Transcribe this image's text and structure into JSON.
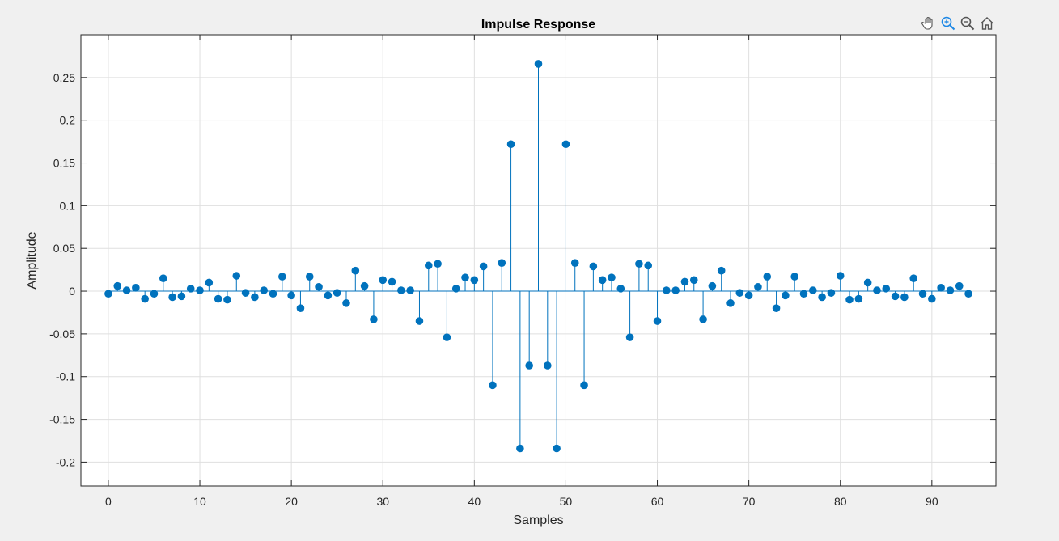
{
  "toolbar": {
    "icons": [
      "pan-hand-icon",
      "zoom-in-icon",
      "zoom-out-icon",
      "home-icon"
    ]
  },
  "chart_data": {
    "type": "stem",
    "title": "Impulse Response",
    "xlabel": "Samples",
    "ylabel": "Amplitude",
    "xlim": [
      -3,
      97
    ],
    "ylim": [
      -0.228,
      0.3
    ],
    "xticks": [
      0,
      10,
      20,
      30,
      40,
      50,
      60,
      70,
      80,
      90
    ],
    "xtick_labels": [
      "0",
      "10",
      "20",
      "30",
      "40",
      "50",
      "60",
      "70",
      "80",
      "90"
    ],
    "yticks": [
      0.25,
      0.2,
      0.15,
      0.1,
      0.05,
      0,
      -0.05,
      -0.1,
      -0.15,
      -0.2
    ],
    "ytick_labels": [
      "0.25",
      "0.2",
      "0.15",
      "0.1",
      "0.05",
      "0",
      "-0.05",
      "-0.1",
      "-0.15",
      "-0.2"
    ],
    "grid": true,
    "colors": {
      "stem": "#0072bd",
      "background": "#f0f0f0",
      "axes": "#ffffff",
      "grid": "#dfdfdf",
      "frame": "#262626"
    },
    "x": [
      0,
      1,
      2,
      3,
      4,
      5,
      6,
      7,
      8,
      9,
      10,
      11,
      12,
      13,
      14,
      15,
      16,
      17,
      18,
      19,
      20,
      21,
      22,
      23,
      24,
      25,
      26,
      27,
      28,
      29,
      30,
      31,
      32,
      33,
      34,
      35,
      36,
      37,
      38,
      39,
      40,
      41,
      42,
      43,
      44,
      45,
      46,
      47,
      48,
      49,
      50,
      51,
      52,
      53,
      54,
      55,
      56,
      57,
      58,
      59,
      60,
      61,
      62,
      63,
      64,
      65,
      66,
      67,
      68,
      69,
      70,
      71,
      72,
      73,
      74,
      75,
      76,
      77,
      78,
      79,
      80,
      81,
      82,
      83,
      84,
      85,
      86,
      87,
      88,
      89,
      90,
      91,
      92,
      93,
      94
    ],
    "y": [
      -0.003,
      0.006,
      0.001,
      0.004,
      -0.009,
      -0.003,
      0.015,
      -0.007,
      -0.006,
      0.003,
      0.001,
      0.01,
      -0.009,
      -0.01,
      0.018,
      -0.002,
      -0.007,
      0.001,
      -0.003,
      0.017,
      -0.005,
      -0.02,
      0.017,
      0.005,
      -0.005,
      -0.002,
      -0.014,
      0.024,
      0.006,
      -0.033,
      0.013,
      0.011,
      0.001,
      0.001,
      -0.035,
      0.03,
      0.032,
      -0.054,
      0.003,
      0.016,
      0.013,
      0.029,
      -0.11,
      0.033,
      0.172,
      -0.184,
      -0.087,
      0.266,
      -0.087,
      -0.184,
      0.172,
      0.033,
      -0.11,
      0.029,
      0.013,
      0.016,
      0.003,
      -0.054,
      0.032,
      0.03,
      -0.035,
      0.001,
      0.001,
      0.011,
      0.013,
      -0.033,
      0.006,
      0.024,
      -0.014,
      -0.002,
      -0.005,
      0.005,
      0.017,
      -0.02,
      -0.005,
      0.017,
      -0.003,
      0.001,
      -0.007,
      -0.002,
      0.018,
      -0.01,
      -0.009,
      0.01,
      0.001,
      0.003,
      -0.006,
      -0.007,
      0.015,
      -0.003,
      -0.009,
      0.004,
      0.001,
      0.006,
      -0.003
    ]
  }
}
